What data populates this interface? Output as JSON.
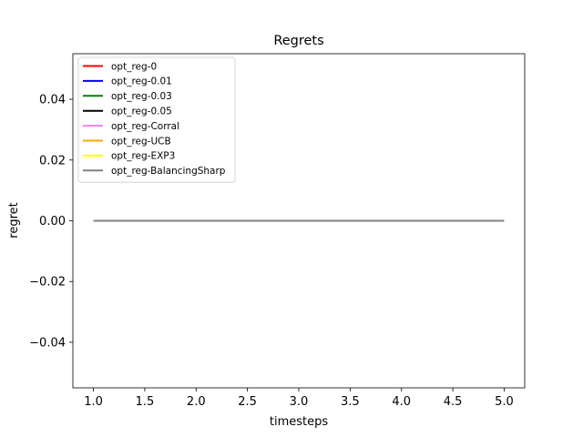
{
  "chart_data": {
    "type": "line",
    "title": "Regrets",
    "xlabel": "timesteps",
    "ylabel": "regret",
    "xlim": [
      0.8,
      5.2
    ],
    "ylim": [
      -0.055,
      0.055
    ],
    "xticks": [
      1.0,
      1.5,
      2.0,
      2.5,
      3.0,
      3.5,
      4.0,
      4.5,
      5.0
    ],
    "xtick_labels": [
      "1.0",
      "1.5",
      "2.0",
      "2.5",
      "3.0",
      "3.5",
      "4.0",
      "4.5",
      "5.0"
    ],
    "yticks": [
      -0.04,
      -0.02,
      0.0,
      0.02,
      0.04
    ],
    "ytick_labels": [
      "−0.04",
      "−0.02",
      "0.00",
      "0.02",
      "0.04"
    ],
    "grid": false,
    "legend_position": "top-left",
    "x": [
      1,
      2,
      3,
      4,
      5
    ],
    "series": [
      {
        "name": "opt_reg-0",
        "color": "#ff0000",
        "values": [
          0,
          0,
          0,
          0,
          0
        ]
      },
      {
        "name": "opt_reg-0.01",
        "color": "#0000ff",
        "values": [
          0,
          0,
          0,
          0,
          0
        ]
      },
      {
        "name": "opt_reg-0.03",
        "color": "#008000",
        "values": [
          0,
          0,
          0,
          0,
          0
        ]
      },
      {
        "name": "opt_reg-0.05",
        "color": "#000000",
        "values": [
          0,
          0,
          0,
          0,
          0
        ]
      },
      {
        "name": "opt_reg-Corral",
        "color": "#ee82ee",
        "values": [
          0,
          0,
          0,
          0,
          0
        ]
      },
      {
        "name": "opt_reg-UCB",
        "color": "#ffa500",
        "values": [
          0,
          0,
          0,
          0,
          0
        ]
      },
      {
        "name": "opt_reg-EXP3",
        "color": "#ffff00",
        "values": [
          0,
          0,
          0,
          0,
          0
        ]
      },
      {
        "name": "opt_reg-BalancingSharp",
        "color": "#808080",
        "values": [
          0,
          0,
          0,
          0,
          0
        ]
      }
    ]
  }
}
